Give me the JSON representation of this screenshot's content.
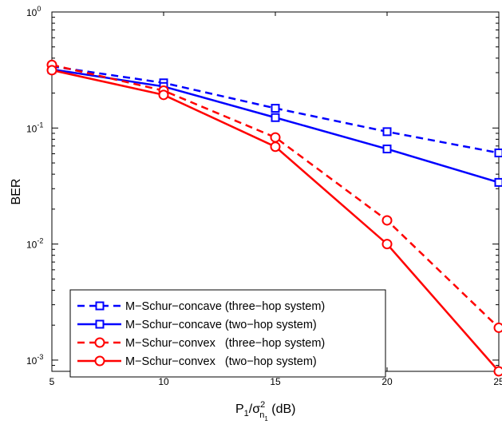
{
  "chart_data": {
    "type": "line",
    "xlabel": "P",
    "xlabel_parts": {
      "base": "P",
      "sub1": "1",
      "slash": "/σ",
      "sup": "2",
      "sub2": "n",
      "sub3": "1",
      "unit": " (dB)"
    },
    "ylabel": "BER",
    "xlim": [
      5,
      25
    ],
    "ylim": [
      0.0008,
      1
    ],
    "yscale": "log",
    "grid": false,
    "legend_position": "bottom-left",
    "x": [
      5,
      10,
      15,
      20,
      25
    ],
    "x_tick_labels": [
      "5",
      "10",
      "15",
      "20",
      "25"
    ],
    "y_ticks": [
      {
        "value": 1,
        "base": "10",
        "exp": "0"
      },
      {
        "value": 0.1,
        "base": "10",
        "exp": "-1"
      },
      {
        "value": 0.01,
        "base": "10",
        "exp": "-2"
      },
      {
        "value": 0.001,
        "base": "10",
        "exp": "-3"
      }
    ],
    "series": [
      {
        "name": "M−Schur−concave (three−hop system)",
        "color": "#0000ff",
        "dash": true,
        "marker": "square",
        "values": [
          0.34,
          0.245,
          0.148,
          0.093,
          0.061
        ]
      },
      {
        "name": "M−Schur−concave (two−hop system)",
        "color": "#0000ff",
        "dash": false,
        "marker": "square",
        "values": [
          0.32,
          0.228,
          0.123,
          0.066,
          0.034
        ]
      },
      {
        "name": "M−Schur−convex   (three−hop system)",
        "color": "#ff0000",
        "dash": true,
        "marker": "circle",
        "values": [
          0.35,
          0.21,
          0.083,
          0.016,
          0.0019
        ]
      },
      {
        "name": "M−Schur−convex   (two−hop system)",
        "color": "#ff0000",
        "dash": false,
        "marker": "circle",
        "values": [
          0.315,
          0.193,
          0.069,
          0.01,
          0.0008
        ]
      }
    ]
  }
}
